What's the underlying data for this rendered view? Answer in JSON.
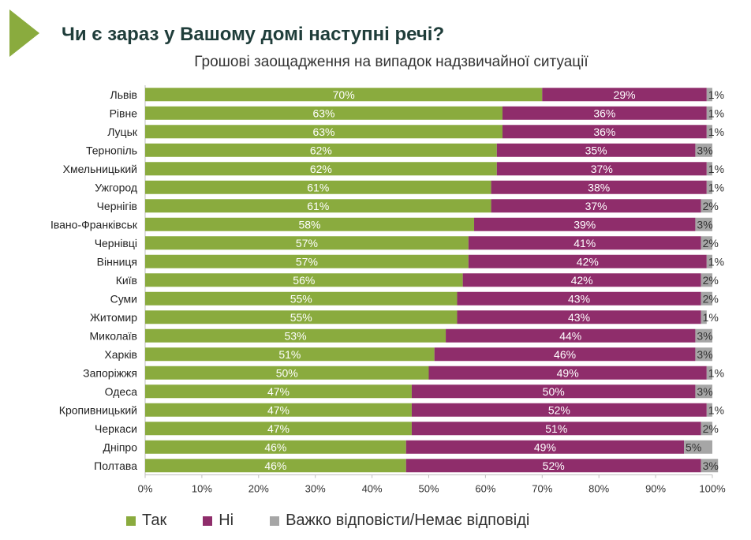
{
  "header": {
    "title": "Чи є зараз у Вашому домі наступні речі?",
    "subtitle": "Грошові заощадження на випадок надзвичайної ситуації"
  },
  "colors": {
    "yes": "#8aab3e",
    "no": "#8f2d6b",
    "hard": "#a6a6a6",
    "accent": "#8aab3e"
  },
  "chart_data": {
    "type": "bar",
    "orientation": "horizontal",
    "stacked": true,
    "title": "Грошові заощадження на випадок надзвичайної ситуації",
    "categories": [
      "Львів",
      "Рівне",
      "Луцьк",
      "Тернопіль",
      "Хмельницький",
      "Ужгород",
      "Чернігів",
      "Івано-Франківськ",
      "Чернівці",
      "Вінниця",
      "Київ",
      "Суми",
      "Житомир",
      "Миколаїв",
      "Харків",
      "Запоріжжя",
      "Одеса",
      "Кропивницький",
      "Черкаси",
      "Дніпро",
      "Полтава"
    ],
    "series": [
      {
        "name": "Так",
        "values": [
          70,
          63,
          63,
          62,
          62,
          61,
          61,
          58,
          57,
          57,
          56,
          55,
          55,
          53,
          51,
          50,
          47,
          47,
          47,
          46,
          46
        ]
      },
      {
        "name": "Ні",
        "values": [
          29,
          36,
          36,
          35,
          37,
          38,
          37,
          39,
          41,
          42,
          42,
          43,
          43,
          44,
          46,
          49,
          50,
          52,
          51,
          49,
          52
        ]
      },
      {
        "name": "Важко відповісти/Немає відповіді",
        "values": [
          1,
          1,
          1,
          3,
          1,
          1,
          2,
          3,
          2,
          1,
          2,
          2,
          1,
          3,
          3,
          1,
          3,
          1,
          2,
          5,
          3
        ]
      }
    ],
    "xlim": [
      0,
      100
    ],
    "xticks": [
      "0%",
      "10%",
      "20%",
      "30%",
      "40%",
      "50%",
      "60%",
      "70%",
      "80%",
      "90%",
      "100%"
    ],
    "legend": "bottom",
    "grid": false
  }
}
